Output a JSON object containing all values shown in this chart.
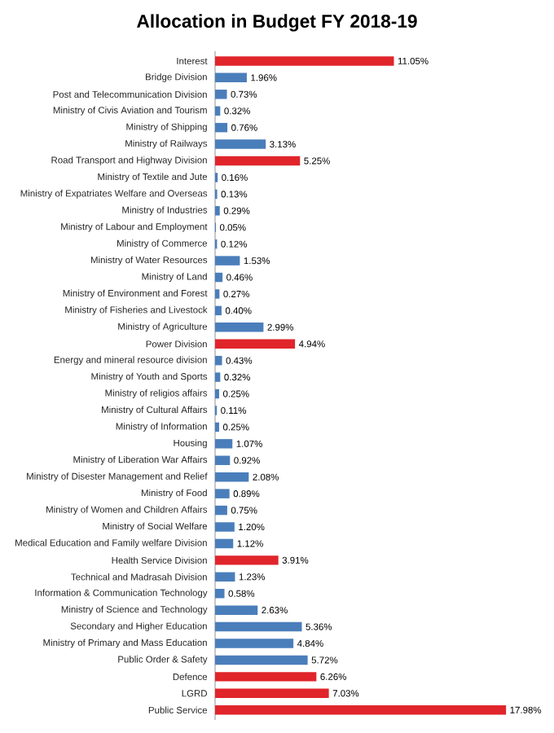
{
  "chart_data": {
    "type": "bar",
    "orientation": "horizontal",
    "title": "Allocation in Budget FY 2018-19",
    "categories": [
      "Interest",
      "Bridge Division",
      "Post and Telecommunication Division",
      "Ministry of Civis Aviation and Tourism",
      "Ministry of Shipping",
      "Ministry of Railways",
      "Road Transport and Highway Division",
      "Ministry of Textile and Jute",
      "Ministry of Expatriates Welfare and Overseas",
      "Ministry of Industries",
      "Ministry of Labour and Employment",
      "Ministry of Commerce",
      "Ministry of Water Resources",
      "Ministry of Land",
      "Ministry of Environment and Forest",
      "Ministry of Fisheries and Livestock",
      "Ministry of Agriculture",
      "Power Division",
      "Energy and mineral resource division",
      "Ministry of Youth and Sports",
      "Ministry of religios affairs",
      "Ministry of Cultural Affairs",
      "Ministry of Information",
      "Housing",
      "Ministry of Liberation War Affairs",
      "Ministry of Disester Management and Relief",
      "Ministry of Food",
      "Ministry of Women and Children Affairs",
      "Ministry of Social Welfare",
      "Medical Education and Family welfare Division",
      "Health Service Division",
      "Technical and Madrasah Division",
      "Information & Communication Technology",
      "Ministry of Science and Technology",
      "Secondary and Higher Education",
      "Ministry of Primary and Mass Education",
      "Public Order & Safety",
      "Defence",
      "LGRD",
      "Public Service"
    ],
    "values": [
      11.05,
      1.96,
      0.73,
      0.32,
      0.76,
      3.13,
      5.25,
      0.16,
      0.13,
      0.29,
      0.05,
      0.12,
      1.53,
      0.46,
      0.27,
      0.4,
      2.99,
      4.94,
      0.43,
      0.32,
      0.25,
      0.11,
      0.25,
      1.07,
      0.92,
      2.08,
      0.89,
      0.75,
      1.2,
      1.12,
      3.91,
      1.23,
      0.58,
      2.63,
      5.36,
      4.84,
      5.72,
      6.26,
      7.03,
      17.98
    ],
    "value_labels": [
      "11.05%",
      "1.96%",
      "0.73%",
      "0.32%",
      "0.76%",
      "3.13%",
      "5.25%",
      "0.16%",
      "0.13%",
      "0.29%",
      "0.05%",
      "0.12%",
      "1.53%",
      "0.46%",
      "0.27%",
      "0.40%",
      "2.99%",
      "4.94%",
      "0.43%",
      "0.32%",
      "0.25%",
      "0.11%",
      "0.25%",
      "1.07%",
      "0.92%",
      "2.08%",
      "0.89%",
      "0.75%",
      "1.20%",
      "1.12%",
      "3.91%",
      "1.23%",
      "0.58%",
      "2.63%",
      "5.36%",
      "4.84%",
      "5.72%",
      "6.26%",
      "7.03%",
      "17.98%"
    ],
    "colors": [
      "#e0252b",
      "#4a7ebb",
      "#4a7ebb",
      "#4a7ebb",
      "#4a7ebb",
      "#4a7ebb",
      "#e0252b",
      "#4a7ebb",
      "#4a7ebb",
      "#4a7ebb",
      "#4a7ebb",
      "#4a7ebb",
      "#4a7ebb",
      "#4a7ebb",
      "#4a7ebb",
      "#4a7ebb",
      "#4a7ebb",
      "#e0252b",
      "#4a7ebb",
      "#4a7ebb",
      "#4a7ebb",
      "#4a7ebb",
      "#4a7ebb",
      "#4a7ebb",
      "#4a7ebb",
      "#4a7ebb",
      "#4a7ebb",
      "#4a7ebb",
      "#4a7ebb",
      "#4a7ebb",
      "#e0252b",
      "#4a7ebb",
      "#4a7ebb",
      "#4a7ebb",
      "#4a7ebb",
      "#4a7ebb",
      "#4a7ebb",
      "#e0252b",
      "#e0252b",
      "#e0252b"
    ],
    "tick_labels": "y"
  }
}
